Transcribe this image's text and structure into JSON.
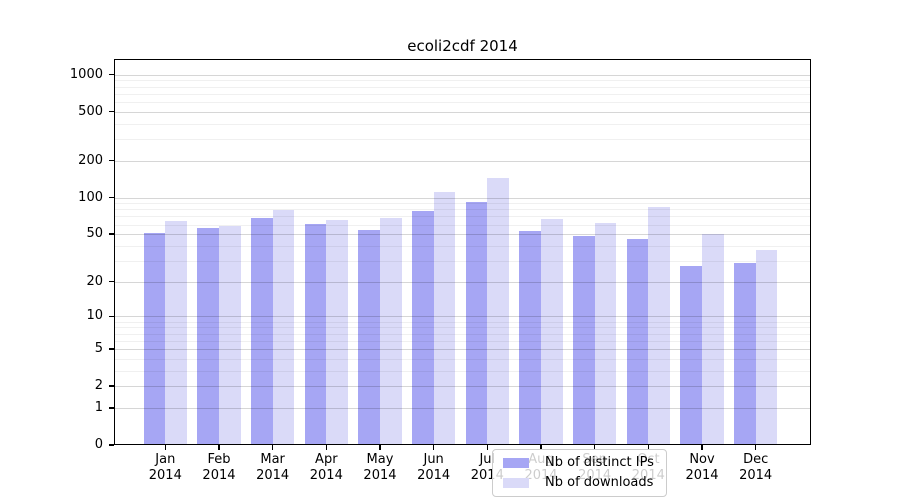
{
  "title": "ecoli2cdf 2014",
  "colors": {
    "ips_bar": "#a6a6f4",
    "downloads_bar": "#dadaf8",
    "grid_major": "rgba(0,0,0,0.16)",
    "grid_minor": "rgba(0,0,0,0.06)",
    "spine": "#000000",
    "legend_border": "#cccccc",
    "legend_background": "rgba(255,255,255,0.8)",
    "text": "#000000"
  },
  "chart_data": {
    "type": "bar",
    "title": "ecoli2cdf 2014",
    "categories": [
      "Jan",
      "Feb",
      "Mar",
      "Apr",
      "May",
      "Jun",
      "Jul",
      "Aug",
      "Sep",
      "Oct",
      "Nov",
      "Dec"
    ],
    "year": "2014",
    "series": [
      {
        "name": "Nb of distinct IPs",
        "color": "#a6a6f4",
        "values": [
          51,
          56,
          68,
          61,
          54,
          77,
          92,
          53,
          48,
          46,
          27,
          29
        ]
      },
      {
        "name": "Nb of downloads",
        "color": "#dadaf8",
        "values": [
          64,
          58,
          79,
          66,
          68,
          111,
          144,
          67,
          62,
          84,
          50,
          37
        ]
      }
    ],
    "xlabel": "",
    "ylabel": "",
    "y_scale": "log1p",
    "y_ticks": [
      0,
      1,
      2,
      5,
      10,
      20,
      50,
      100,
      200,
      500,
      1000
    ],
    "y_minor_ticks": [
      3,
      4,
      6,
      7,
      8,
      9,
      30,
      40,
      60,
      70,
      80,
      90,
      300,
      400,
      600,
      700,
      800,
      900
    ],
    "ylim": [
      0,
      1350
    ],
    "grid": true,
    "legend_position": "inside-bottom-center"
  }
}
